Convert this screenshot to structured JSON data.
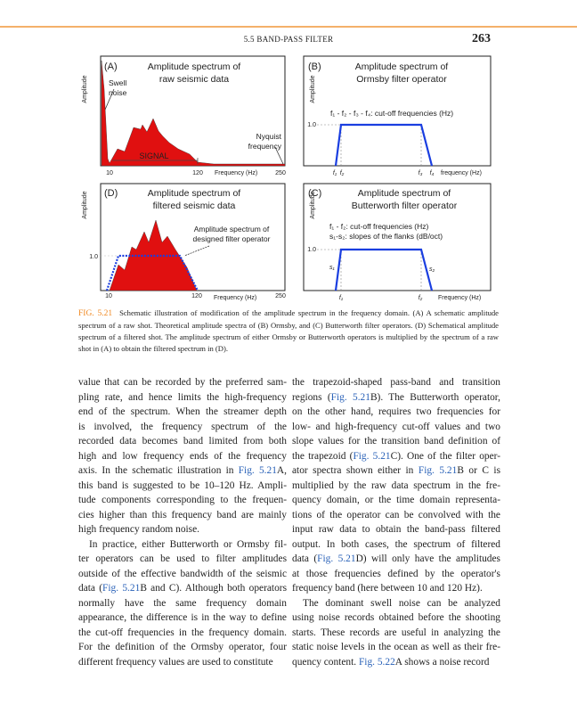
{
  "header": {
    "running_title": "5.5 BAND-PASS FILTER",
    "page_number": "263"
  },
  "colors": {
    "accent": "#f08a24",
    "link": "#2a62b8",
    "spectrum": "#e01010",
    "operator": "#1a3ee0"
  },
  "figure": {
    "panel_a": {
      "label": "(A)",
      "title1": "Amplitude spectrum of",
      "title2": "raw seismic data",
      "ylabel": "Amplitude",
      "swell1": "Swell",
      "swell2": "noise",
      "nyq1": "Nyquist",
      "nyq2": "frequency",
      "signal": "SIGNAL",
      "x_ticks": [
        "10",
        "120",
        "250"
      ],
      "xlabel": "Frequency (Hz)"
    },
    "panel_b": {
      "label": "(B)",
      "title1": "Amplitude spectrum of",
      "title2": "Ormsby filter operator",
      "ylabel": "Amplitude",
      "note": "f₁ - f₂ - f₃ - f₄: cut-off frequencies (Hz)",
      "level": "1.0",
      "x_ticks": [
        "f₁",
        "f₂",
        "f₃",
        "f₄"
      ],
      "xlabel": "frequency (Hz)"
    },
    "panel_d": {
      "label": "(D)",
      "title1": "Amplitude spectrum of",
      "title2": "filtered seismic data",
      "ylabel": "Amplitude",
      "note1": "Amplitude spectrum of",
      "note2": "designed filter operator",
      "level": "1.0",
      "x_ticks": [
        "10",
        "120",
        "250"
      ],
      "xlabel": "Frequency (Hz)"
    },
    "panel_c": {
      "label": "(C)",
      "title1": "Amplitude spectrum of",
      "title2": "Butterworth filter operator",
      "ylabel": "Amplitude",
      "note1": "f₁ - f₂: cut-off frequencies (Hz)",
      "note2": "s₁-s₂: slopes of the flanks (dB/oct)",
      "level": "1.0",
      "s1": "s₁",
      "s2": "s₂",
      "x_ticks": [
        "f₁",
        "f₂"
      ],
      "xlabel": "Frequency (Hz)"
    }
  },
  "caption": {
    "label": "FIG. 5.21",
    "text": "Schematic illustration of modification of the amplitude spectrum in the frequency domain. (A) A schematic amplitude spectrum of a raw shot. Theoretical amplitude spectra of (B) Ormsby, and (C) Butterworth filter operators. (D) Schematical amplitude spectrum of a filtered shot. The amplitude spectrum of either Ormsby or Butterworth operators is multiplied by the spectrum of a raw shot in (A) to obtain the filtered spectrum in (D)."
  },
  "body": {
    "left": [
      [
        [
          "value that can be recorded by the preferred sam-",
          0
        ]
      ],
      [
        [
          "pling rate, and hence limits the high-frequency",
          0
        ]
      ],
      [
        [
          "end of the spectrum. When the streamer depth",
          0
        ]
      ],
      [
        [
          "is involved, the frequency spectrum of the",
          0
        ]
      ],
      [
        [
          "recorded data becomes band limited from both",
          0
        ]
      ],
      [
        [
          "high and low frequency ends of the frequency",
          0
        ]
      ],
      [
        [
          "axis. In the schematic illustration in ",
          0
        ],
        [
          "Fig. 5.21",
          1
        ],
        [
          "A,",
          0
        ]
      ],
      [
        [
          "this band is suggested to be 10–120 Hz. Ampli-",
          0
        ]
      ],
      [
        [
          "tude components corresponding to the frequen-",
          0
        ]
      ],
      [
        [
          "cies higher than this frequency band are mainly",
          0
        ]
      ],
      [
        [
          "high frequency random noise.",
          0
        ]
      ],
      [
        [
          "In practice, either Butterworth or Ormsby fil-",
          0
        ]
      ],
      [
        [
          "ter operators can be used to filter amplitudes",
          0
        ]
      ],
      [
        [
          "outside of the effective bandwidth of the seismic",
          0
        ]
      ],
      [
        [
          "data (",
          0
        ],
        [
          "Fig. 5.21",
          1
        ],
        [
          "B and C). Although both operators",
          0
        ]
      ],
      [
        [
          "normally have the same frequency domain",
          0
        ]
      ],
      [
        [
          "appearance, the difference is in the way to define",
          0
        ]
      ],
      [
        [
          "the cut-off frequencies in the frequency domain.",
          0
        ]
      ],
      [
        [
          "For the definition of the Ormsby operator, four",
          0
        ]
      ],
      [
        [
          "different frequency values are used to constitute",
          0
        ]
      ]
    ],
    "right": [
      [
        [
          "the trapezoid-shaped pass-band and transition",
          0
        ]
      ],
      [
        [
          "regions (",
          0
        ],
        [
          "Fig. 5.21",
          1
        ],
        [
          "B). The Butterworth operator,",
          0
        ]
      ],
      [
        [
          "on the other hand, requires two frequencies for",
          0
        ]
      ],
      [
        [
          "low- and high-frequency cut-off values and two",
          0
        ]
      ],
      [
        [
          "slope values for the transition band definition of",
          0
        ]
      ],
      [
        [
          "the trapezoid (",
          0
        ],
        [
          "Fig. 5.21",
          1
        ],
        [
          "C). One of the filter oper-",
          0
        ]
      ],
      [
        [
          "ator spectra shown either in ",
          0
        ],
        [
          "Fig. 5.21",
          1
        ],
        [
          "B or C is",
          0
        ]
      ],
      [
        [
          "multiplied by the raw data spectrum in the fre-",
          0
        ]
      ],
      [
        [
          "quency domain, or the time domain representa-",
          0
        ]
      ],
      [
        [
          "tions of the operator can be convolved with the",
          0
        ]
      ],
      [
        [
          "input raw data to obtain the band-pass filtered",
          0
        ]
      ],
      [
        [
          "output. In both cases, the spectrum of filtered",
          0
        ]
      ],
      [
        [
          "data (",
          0
        ],
        [
          "Fig. 5.21",
          1
        ],
        [
          "D) will only have the amplitudes",
          0
        ]
      ],
      [
        [
          "at those frequencies defined by the operator's",
          0
        ]
      ],
      [
        [
          "frequency band (here between 10 and 120 Hz).",
          0
        ]
      ],
      [
        [
          "The dominant swell noise can be analyzed",
          0
        ]
      ],
      [
        [
          "using noise records obtained before the shooting",
          0
        ]
      ],
      [
        [
          "starts. These records are useful in analyzing the",
          0
        ]
      ],
      [
        [
          "static noise levels in the ocean as well as their fre-",
          0
        ]
      ],
      [
        [
          "quency content. ",
          0
        ],
        [
          "Fig. 5.22",
          1
        ],
        [
          "A shows a noise record",
          0
        ]
      ]
    ]
  }
}
